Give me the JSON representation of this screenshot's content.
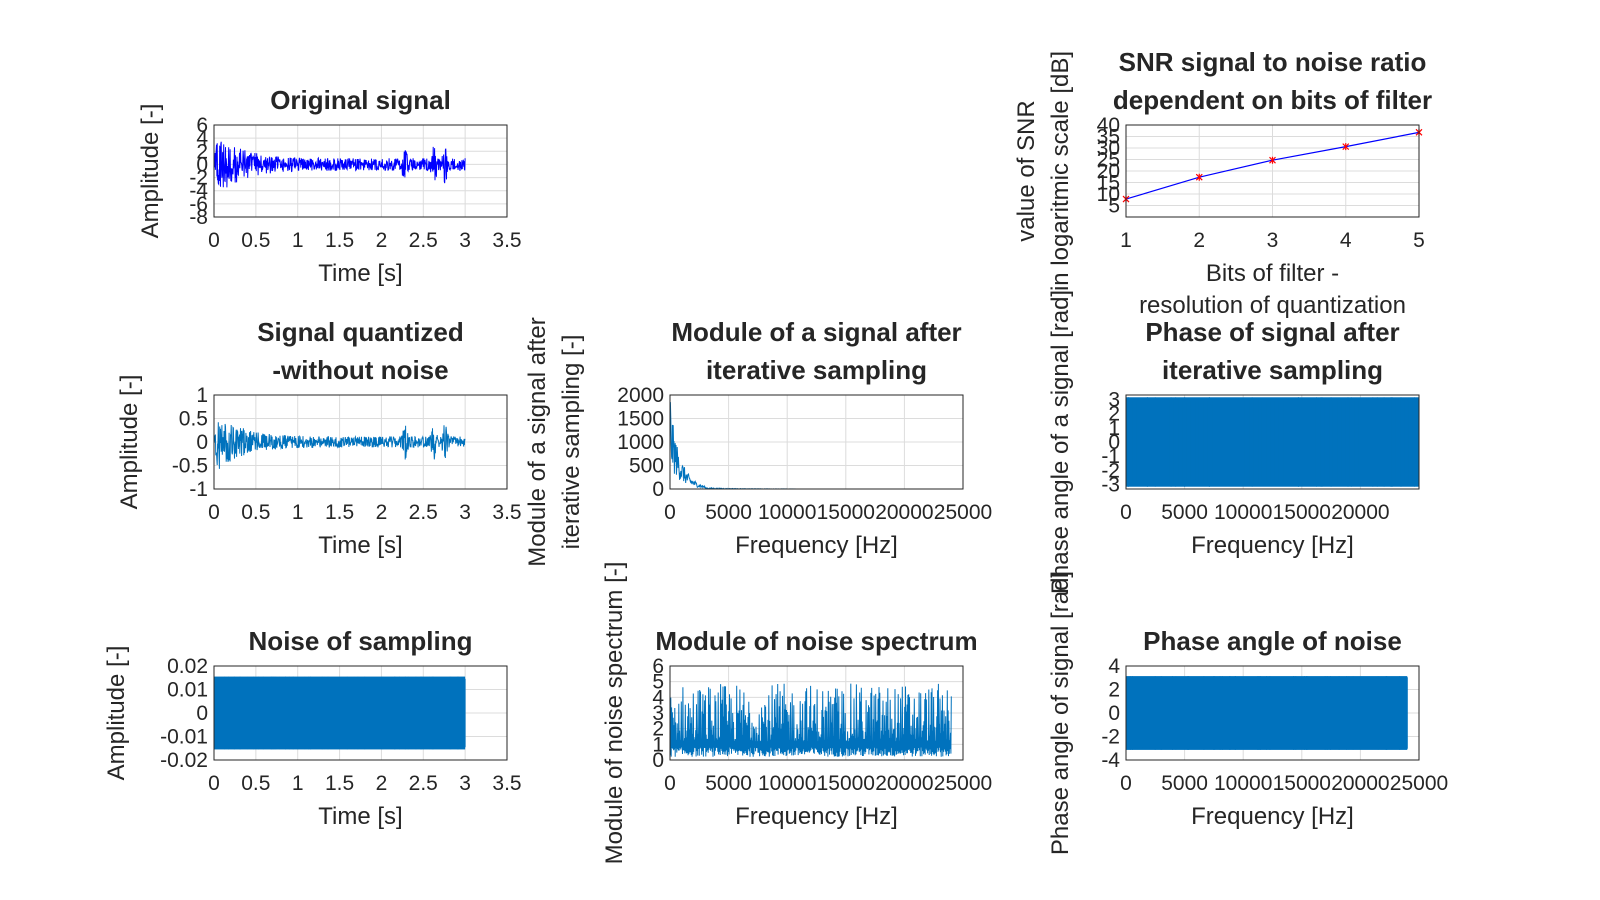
{
  "chart_data": [
    {
      "id": "original",
      "type": "line",
      "title": [
        "Original signal"
      ],
      "xlabel": [
        "Time [s]"
      ],
      "ylabel": [
        "Amplitude [-]"
      ],
      "xlim": [
        0,
        3.5
      ],
      "ylim": [
        -8,
        6
      ],
      "xticks": [
        "0",
        "0.5",
        "1",
        "1.5",
        "2",
        "2.5",
        "3",
        "3.5"
      ],
      "yticks": [
        "-8",
        "-6",
        "-4",
        "-2",
        "0",
        "2",
        "4",
        "6"
      ],
      "grid": true,
      "series": [
        {
          "color": "#0000ff",
          "style": "dense-signal",
          "x_range": [
            0,
            3
          ],
          "peak_abs": 5.5,
          "bursts": [
            2.28,
            2.63,
            2.76
          ]
        }
      ]
    },
    {
      "id": "snr",
      "type": "line",
      "title": [
        "SNR signal to noise ratio",
        "dependent on bits of filter"
      ],
      "xlabel": [
        "Bits of filter -",
        "resolution of quantization"
      ],
      "ylabel": [
        "value of SNR",
        "in logaritmic scale [dB]"
      ],
      "xlim": [
        1,
        5
      ],
      "ylim": [
        0,
        40
      ],
      "xticks": [
        "1",
        "2",
        "3",
        "4",
        "5"
      ],
      "yticks": [
        "5",
        "10",
        "15",
        "20",
        "25",
        "30",
        "35",
        "40"
      ],
      "grid": true,
      "series": [
        {
          "color": "#0000ff",
          "marker_color": "#ff0000",
          "x": [
            1,
            2,
            3,
            4,
            5
          ],
          "y": [
            7.8,
            17.3,
            24.7,
            30.6,
            36.8
          ]
        }
      ]
    },
    {
      "id": "quantized",
      "type": "line",
      "title": [
        "Signal quantized",
        "-without noise"
      ],
      "xlabel": [
        "Time [s]"
      ],
      "ylabel": [
        "Amplitude [-]"
      ],
      "xlim": [
        0,
        3.5
      ],
      "ylim": [
        -1,
        1
      ],
      "xticks": [
        "0",
        "0.5",
        "1",
        "1.5",
        "2",
        "2.5",
        "3",
        "3.5"
      ],
      "yticks": [
        "-1",
        "-0.5",
        "0",
        "0.5",
        "1"
      ],
      "grid": true,
      "series": [
        {
          "color": "#0072bd",
          "style": "dense-signal",
          "x_range": [
            0,
            3
          ],
          "peak_abs": 0.7,
          "bursts": [
            2.28,
            2.63,
            2.76
          ]
        }
      ]
    },
    {
      "id": "module-signal",
      "type": "line",
      "title": [
        "Module of a signal after",
        "iterative sampling"
      ],
      "xlabel": [
        "Frequency [Hz]"
      ],
      "ylabel": [
        "Module of a signal after",
        "iterative sampling [-]"
      ],
      "xlim": [
        0,
        25000
      ],
      "ylim": [
        0,
        2000
      ],
      "xticks": [
        "0",
        "5000",
        "10000",
        "15000",
        "20000",
        "25000"
      ],
      "yticks": [
        "0",
        "500",
        "1000",
        "1500",
        "2000"
      ],
      "grid": true,
      "series": [
        {
          "color": "#0072bd",
          "style": "spectrum",
          "x_range": [
            0,
            24000
          ],
          "peak": 1850,
          "peak_at": 200
        }
      ]
    },
    {
      "id": "phase-signal",
      "type": "line",
      "title": [
        "Phase of signal after",
        "iterative sampling"
      ],
      "xlabel": [
        "Frequency [Hz]"
      ],
      "ylabel": [
        "Phase angle of a signal [rad]"
      ],
      "xlim": [
        0,
        25000
      ],
      "ylim": [
        -3.3,
        3.3
      ],
      "xticks": [
        "0",
        "5000",
        "10000",
        "15000",
        "20000"
      ],
      "yticks": [
        "-3",
        "-2",
        "-1",
        "0",
        "1",
        "2",
        "3"
      ],
      "grid": true,
      "series": [
        {
          "color": "#0072bd",
          "style": "dense-band",
          "x_range": [
            0,
            25000
          ],
          "band": [
            -3.14,
            3.14
          ]
        }
      ]
    },
    {
      "id": "noise",
      "type": "line",
      "title": [
        "Noise of sampling"
      ],
      "xlabel": [
        "Time [s]"
      ],
      "ylabel": [
        "Amplitude [-]"
      ],
      "xlim": [
        0,
        3.5
      ],
      "ylim": [
        -0.02,
        0.02
      ],
      "xticks": [
        "0",
        "0.5",
        "1",
        "1.5",
        "2",
        "2.5",
        "3",
        "3.5"
      ],
      "yticks": [
        "-0.02",
        "-0.01",
        "0",
        "0.01",
        "0.02"
      ],
      "grid": true,
      "series": [
        {
          "color": "#0072bd",
          "style": "dense-band",
          "x_range": [
            0,
            3
          ],
          "band": [
            -0.0155,
            0.0155
          ]
        }
      ]
    },
    {
      "id": "module-noise",
      "type": "line",
      "title": [
        "Module of noise spectrum"
      ],
      "xlabel": [
        "Frequency [Hz]"
      ],
      "ylabel": [
        "Module of noise spectrum [-]"
      ],
      "xlim": [
        0,
        25000
      ],
      "ylim": [
        0,
        6
      ],
      "xticks": [
        "0",
        "5000",
        "10000",
        "15000",
        "20000",
        "25000"
      ],
      "yticks": [
        "0",
        "1",
        "2",
        "3",
        "4",
        "5",
        "6"
      ],
      "grid": true,
      "series": [
        {
          "color": "#0072bd",
          "style": "noisy-spectrum",
          "x_range": [
            0,
            24000
          ],
          "floor": 0.2,
          "max": 5.3
        }
      ]
    },
    {
      "id": "phase-noise",
      "type": "line",
      "title": [
        "Phase angle of noise"
      ],
      "xlabel": [
        "Frequency [Hz]"
      ],
      "ylabel": [
        "Phase angle of signal [rad]"
      ],
      "xlim": [
        0,
        25000
      ],
      "ylim": [
        -4,
        4
      ],
      "xticks": [
        "0",
        "5000",
        "10000",
        "15000",
        "20000",
        "25000"
      ],
      "yticks": [
        "-4",
        "-2",
        "0",
        "2",
        "4"
      ],
      "grid": true,
      "series": [
        {
          "color": "#0072bd",
          "style": "dense-band",
          "x_range": [
            0,
            24000
          ],
          "band": [
            -3.14,
            3.14
          ]
        }
      ]
    }
  ]
}
